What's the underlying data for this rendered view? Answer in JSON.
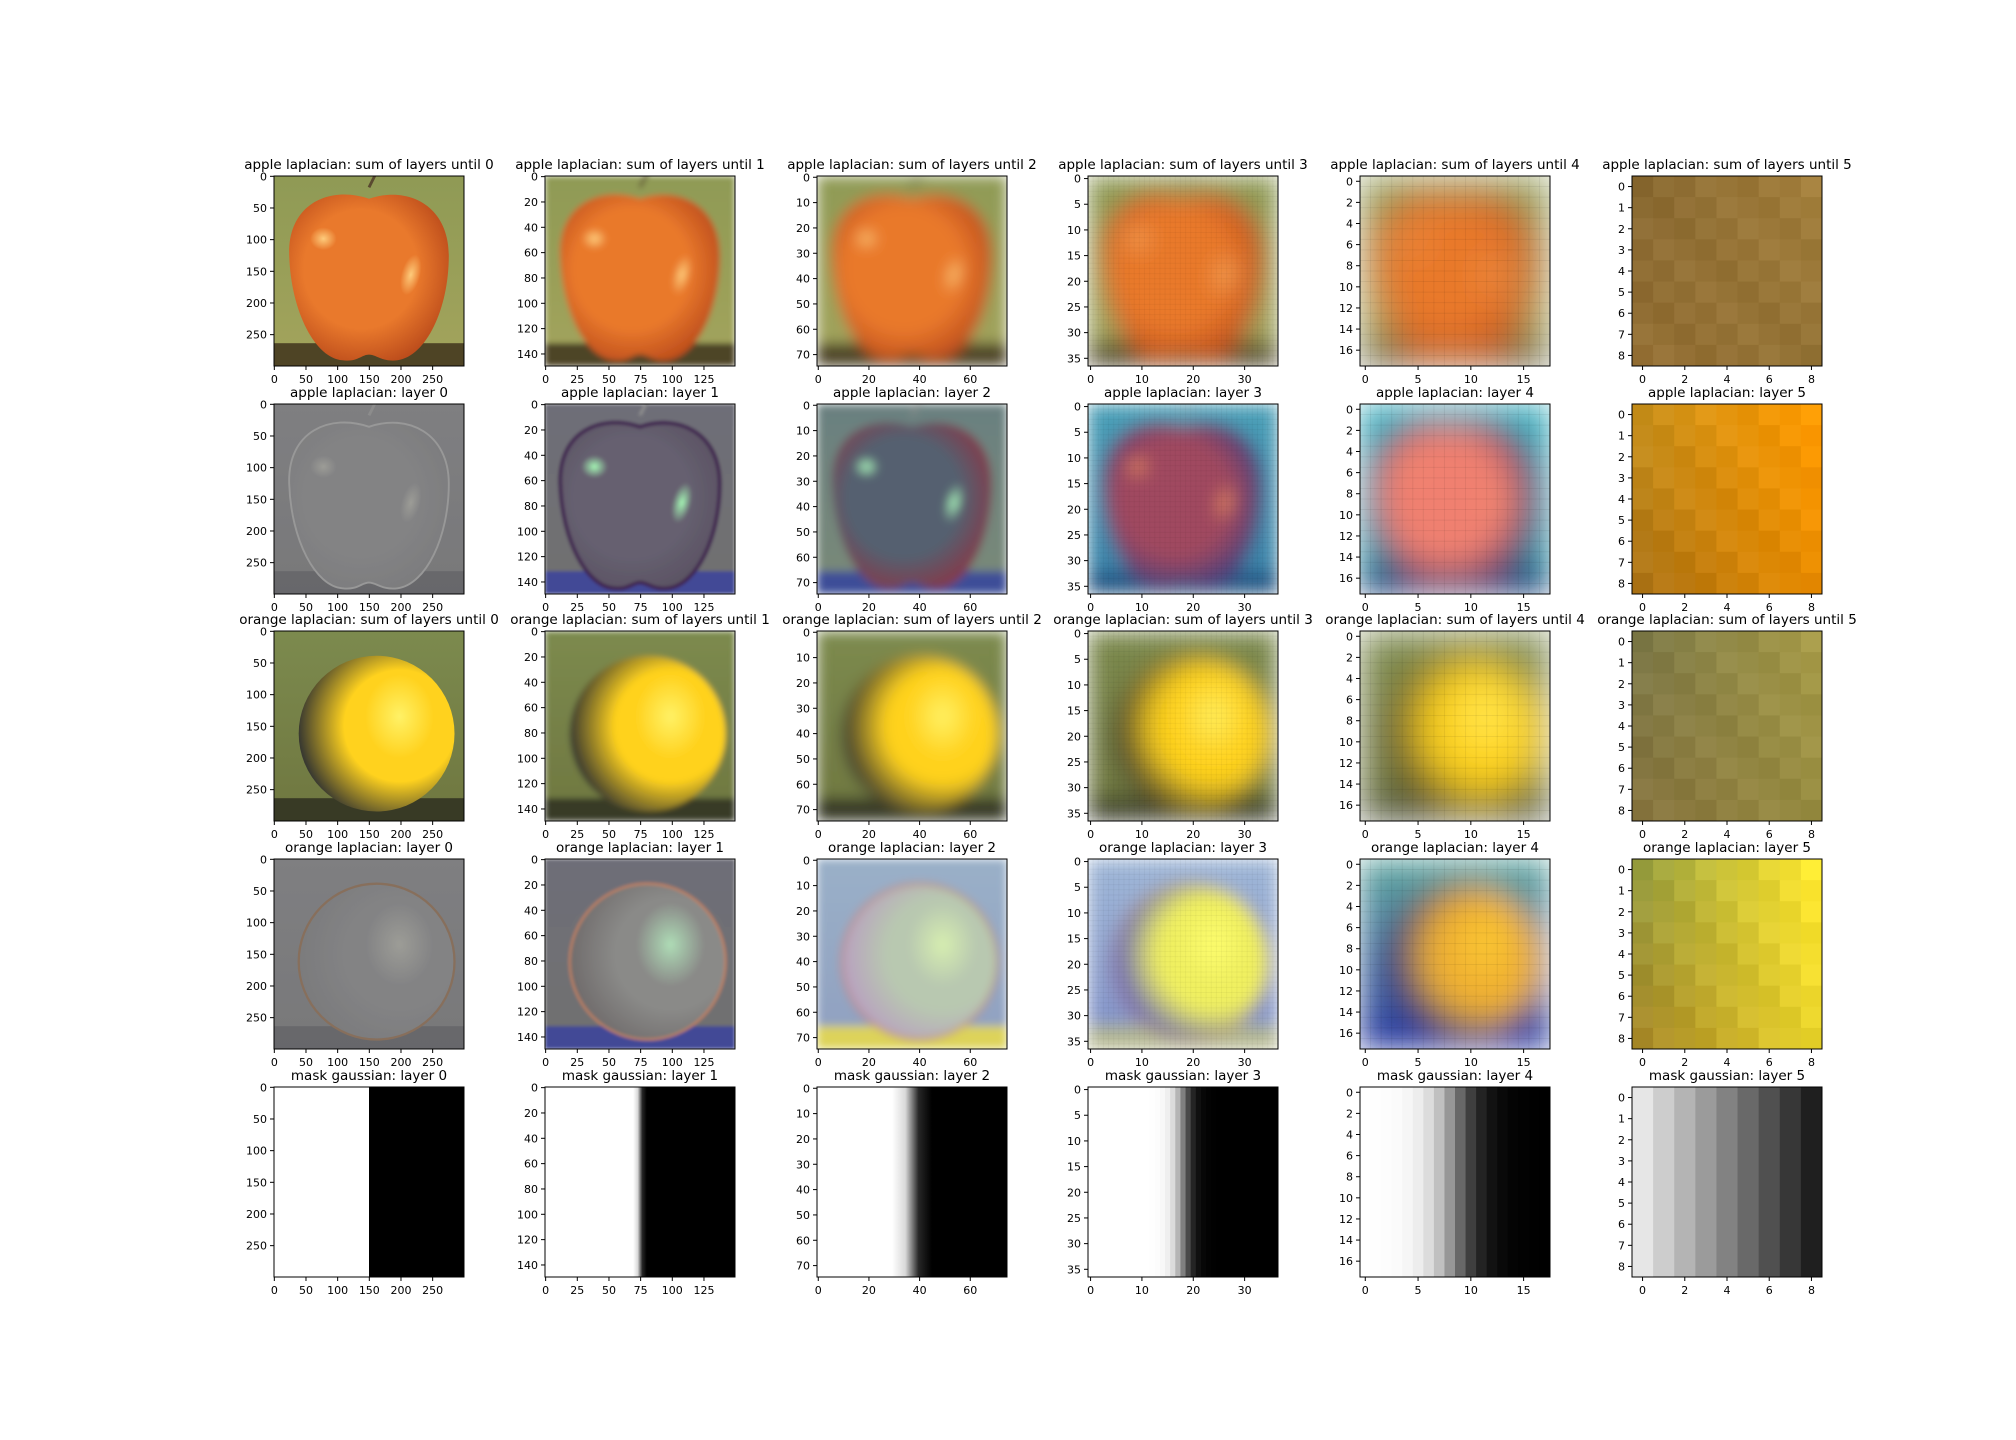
{
  "figure": {
    "panels": [
      {
        "title": "apple laplacian: sum of layers until 0",
        "size": 300,
        "xticks": [
          0,
          50,
          100,
          150,
          200,
          250
        ],
        "yticks": [
          0,
          50,
          100,
          150,
          200,
          250
        ],
        "img": {
          "kind": "fruit",
          "fruit": "apple",
          "type": "sum",
          "blur": 0
        }
      },
      {
        "title": "apple laplacian: sum of layers until 1",
        "size": 150,
        "xticks": [
          0,
          25,
          50,
          75,
          100,
          125
        ],
        "yticks": [
          0,
          20,
          40,
          60,
          80,
          100,
          120,
          140
        ],
        "img": {
          "kind": "fruit",
          "fruit": "apple",
          "type": "sum",
          "blur": 1.5
        }
      },
      {
        "title": "apple laplacian: sum of layers until 2",
        "size": 75,
        "xticks": [
          0,
          20,
          40,
          60
        ],
        "yticks": [
          0,
          10,
          20,
          30,
          40,
          50,
          60,
          70
        ],
        "img": {
          "kind": "fruit",
          "fruit": "apple",
          "type": "sum",
          "blur": 3.5
        }
      },
      {
        "title": "apple laplacian: sum of layers until 3",
        "size": 37,
        "xticks": [
          0,
          10,
          20,
          30
        ],
        "yticks": [
          0,
          5,
          10,
          15,
          20,
          25,
          30,
          35
        ],
        "img": {
          "kind": "fruit",
          "fruit": "apple",
          "type": "sum",
          "blur": 6,
          "pixel": 37
        }
      },
      {
        "title": "apple laplacian: sum of layers until 4",
        "size": 18,
        "xticks": [
          0,
          5,
          10,
          15
        ],
        "yticks": [
          0,
          2,
          4,
          6,
          8,
          10,
          12,
          14,
          16
        ],
        "img": {
          "kind": "fruit",
          "fruit": "apple",
          "type": "sum",
          "blur": 10,
          "pixel": 18
        }
      },
      {
        "title": "apple laplacian: sum of layers until 5",
        "size": 9,
        "xticks": [
          0,
          2,
          4,
          6,
          8
        ],
        "yticks": [
          0,
          1,
          2,
          3,
          4,
          5,
          6,
          7,
          8
        ],
        "img": {
          "kind": "flat",
          "colors": [
            "#8a6a32",
            "#a37f3c",
            "#9a7336"
          ],
          "pixel": 9
        }
      },
      {
        "title": "apple laplacian: layer 0",
        "size": 300,
        "xticks": [
          0,
          50,
          100,
          150,
          200,
          250
        ],
        "yticks": [
          0,
          50,
          100,
          150,
          200,
          250
        ],
        "img": {
          "kind": "fruit",
          "fruit": "apple",
          "type": "lap0"
        }
      },
      {
        "title": "apple laplacian: layer 1",
        "size": 150,
        "xticks": [
          0,
          25,
          50,
          75,
          100,
          125
        ],
        "yticks": [
          0,
          20,
          40,
          60,
          80,
          100,
          120,
          140
        ],
        "img": {
          "kind": "fruit",
          "fruit": "apple",
          "type": "lap1"
        }
      },
      {
        "title": "apple laplacian: layer 2",
        "size": 75,
        "xticks": [
          0,
          20,
          40,
          60
        ],
        "yticks": [
          0,
          10,
          20,
          30,
          40,
          50,
          60,
          70
        ],
        "img": {
          "kind": "fruit",
          "fruit": "apple",
          "type": "lap2"
        }
      },
      {
        "title": "apple laplacian: layer 3",
        "size": 37,
        "xticks": [
          0,
          10,
          20,
          30
        ],
        "yticks": [
          0,
          5,
          10,
          15,
          20,
          25,
          30,
          35
        ],
        "img": {
          "kind": "fruit",
          "fruit": "apple",
          "type": "lap3",
          "pixel": 37
        }
      },
      {
        "title": "apple laplacian: layer 4",
        "size": 18,
        "xticks": [
          0,
          5,
          10,
          15
        ],
        "yticks": [
          0,
          2,
          4,
          6,
          8,
          10,
          12,
          14,
          16
        ],
        "img": {
          "kind": "fruit",
          "fruit": "apple",
          "type": "lap4",
          "pixel": 18
        }
      },
      {
        "title": "apple laplacian: layer 5",
        "size": 9,
        "xticks": [
          0,
          2,
          4,
          6,
          8
        ],
        "yticks": [
          0,
          1,
          2,
          3,
          4,
          5,
          6,
          7,
          8
        ],
        "img": {
          "kind": "flat",
          "colors": [
            "#c8901c",
            "#ff9a00",
            "#9a6010"
          ],
          "pixel": 9
        }
      },
      {
        "title": "orange laplacian: sum of layers until 0",
        "size": 300,
        "xticks": [
          0,
          50,
          100,
          150,
          200,
          250
        ],
        "yticks": [
          0,
          50,
          100,
          150,
          200,
          250
        ],
        "img": {
          "kind": "fruit",
          "fruit": "orange",
          "type": "sum",
          "blur": 0
        }
      },
      {
        "title": "orange laplacian: sum of layers until 1",
        "size": 150,
        "xticks": [
          0,
          25,
          50,
          75,
          100,
          125
        ],
        "yticks": [
          0,
          20,
          40,
          60,
          80,
          100,
          120,
          140
        ],
        "img": {
          "kind": "fruit",
          "fruit": "orange",
          "type": "sum",
          "blur": 1.5
        }
      },
      {
        "title": "orange laplacian: sum of layers until 2",
        "size": 75,
        "xticks": [
          0,
          20,
          40,
          60
        ],
        "yticks": [
          0,
          10,
          20,
          30,
          40,
          50,
          60,
          70
        ],
        "img": {
          "kind": "fruit",
          "fruit": "orange",
          "type": "sum",
          "blur": 3.5
        }
      },
      {
        "title": "orange laplacian: sum of layers until 3",
        "size": 37,
        "xticks": [
          0,
          10,
          20,
          30
        ],
        "yticks": [
          0,
          5,
          10,
          15,
          20,
          25,
          30,
          35
        ],
        "img": {
          "kind": "fruit",
          "fruit": "orange",
          "type": "sum",
          "blur": 6,
          "pixel": 37
        }
      },
      {
        "title": "orange laplacian: sum of layers until 4",
        "size": 18,
        "xticks": [
          0,
          5,
          10,
          15
        ],
        "yticks": [
          0,
          2,
          4,
          6,
          8,
          10,
          12,
          14,
          16
        ],
        "img": {
          "kind": "fruit",
          "fruit": "orange",
          "type": "sum",
          "blur": 10,
          "pixel": 18
        }
      },
      {
        "title": "orange laplacian: sum of layers until 5",
        "size": 9,
        "xticks": [
          0,
          2,
          4,
          6,
          8
        ],
        "yticks": [
          0,
          1,
          2,
          3,
          4,
          5,
          6,
          7,
          8
        ],
        "img": {
          "kind": "flat",
          "colors": [
            "#7e7a48",
            "#a69a48",
            "#8c7038"
          ],
          "pixel": 9
        }
      },
      {
        "title": "orange laplacian: layer 0",
        "size": 300,
        "xticks": [
          0,
          50,
          100,
          150,
          200,
          250
        ],
        "yticks": [
          0,
          50,
          100,
          150,
          200,
          250
        ],
        "img": {
          "kind": "fruit",
          "fruit": "orange",
          "type": "lap0"
        }
      },
      {
        "title": "orange laplacian: layer 1",
        "size": 150,
        "xticks": [
          0,
          25,
          50,
          75,
          100,
          125
        ],
        "yticks": [
          0,
          20,
          40,
          60,
          80,
          100,
          120,
          140
        ],
        "img": {
          "kind": "fruit",
          "fruit": "orange",
          "type": "lap1"
        }
      },
      {
        "title": "orange laplacian: layer 2",
        "size": 75,
        "xticks": [
          0,
          20,
          40,
          60
        ],
        "yticks": [
          0,
          10,
          20,
          30,
          40,
          50,
          60,
          70
        ],
        "img": {
          "kind": "fruit",
          "fruit": "orange",
          "type": "lap2"
        }
      },
      {
        "title": "orange laplacian: layer 3",
        "size": 37,
        "xticks": [
          0,
          10,
          20,
          30
        ],
        "yticks": [
          0,
          5,
          10,
          15,
          20,
          25,
          30,
          35
        ],
        "img": {
          "kind": "fruit",
          "fruit": "orange",
          "type": "lap3",
          "pixel": 37
        }
      },
      {
        "title": "orange laplacian: layer 4",
        "size": 18,
        "xticks": [
          0,
          5,
          10,
          15
        ],
        "yticks": [
          0,
          2,
          4,
          6,
          8,
          10,
          12,
          14,
          16
        ],
        "img": {
          "kind": "fruit",
          "fruit": "orange",
          "type": "lap4",
          "pixel": 18
        }
      },
      {
        "title": "orange laplacian: layer 5",
        "size": 9,
        "xticks": [
          0,
          2,
          4,
          6,
          8
        ],
        "yticks": [
          0,
          1,
          2,
          3,
          4,
          5,
          6,
          7,
          8
        ],
        "img": {
          "kind": "flat",
          "colors": [
            "#9aa040",
            "#ffe830",
            "#b07a18"
          ],
          "pixel": 9
        }
      },
      {
        "title": "mask gaussian: layer 0",
        "size": 300,
        "xticks": [
          0,
          50,
          100,
          150,
          200,
          250
        ],
        "yticks": [
          0,
          50,
          100,
          150,
          200,
          250
        ],
        "img": {
          "kind": "mask",
          "sigma": 0
        }
      },
      {
        "title": "mask gaussian: layer 1",
        "size": 150,
        "xticks": [
          0,
          25,
          50,
          75,
          100,
          125
        ],
        "yticks": [
          0,
          20,
          40,
          60,
          80,
          100,
          120,
          140
        ],
        "img": {
          "kind": "mask",
          "sigma": 0.012
        }
      },
      {
        "title": "mask gaussian: layer 2",
        "size": 75,
        "xticks": [
          0,
          20,
          40,
          60
        ],
        "yticks": [
          0,
          10,
          20,
          30,
          40,
          50,
          60,
          70
        ],
        "img": {
          "kind": "mask",
          "sigma": 0.035
        }
      },
      {
        "title": "mask gaussian: layer 3",
        "size": 37,
        "xticks": [
          0,
          10,
          20,
          30
        ],
        "yticks": [
          0,
          5,
          10,
          15,
          20,
          25,
          30,
          35
        ],
        "img": {
          "kind": "mask",
          "sigma": 0.08,
          "pixel": 37
        }
      },
      {
        "title": "mask gaussian: layer 4",
        "size": 18,
        "xticks": [
          0,
          5,
          10,
          15
        ],
        "yticks": [
          0,
          2,
          4,
          6,
          8,
          10,
          12,
          14,
          16
        ],
        "img": {
          "kind": "mask",
          "sigma": 0.2,
          "pixel": 18
        }
      },
      {
        "title": "mask gaussian: layer 5",
        "size": 9,
        "xticks": [
          0,
          2,
          4,
          6,
          8
        ],
        "yticks": [
          0,
          1,
          2,
          3,
          4,
          5,
          6,
          7,
          8
        ],
        "img": {
          "kind": "mask",
          "sigma": 0.35,
          "pixel": 9,
          "range": [
            0.9,
            0.12
          ]
        }
      }
    ]
  }
}
